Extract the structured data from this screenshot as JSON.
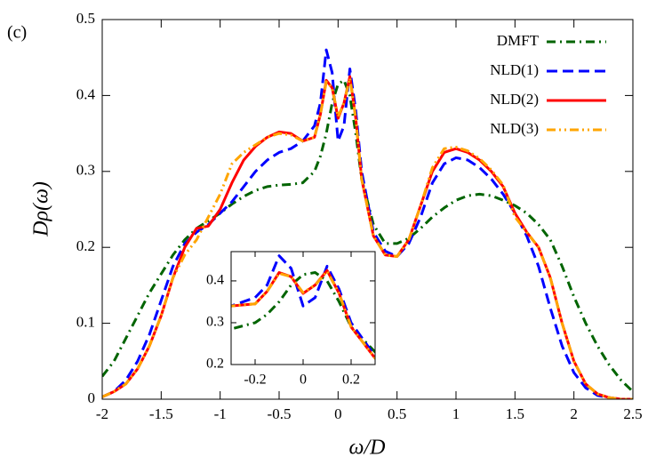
{
  "chart_data": {
    "type": "line",
    "annotation": "(c)",
    "x_label": "ω/D",
    "y_label": "Dρ(ω)",
    "xlim": [
      -2,
      2.5
    ],
    "ylim": [
      0,
      0.5
    ],
    "xticks": [
      -2,
      -1.5,
      -1,
      -0.5,
      0,
      0.5,
      1,
      1.5,
      2,
      2.5
    ],
    "yticks": [
      0,
      0.1,
      0.2,
      0.3,
      0.4,
      0.5
    ],
    "legend": "top-right",
    "x": [
      -2,
      -1.9,
      -1.8,
      -1.7,
      -1.6,
      -1.5,
      -1.4,
      -1.3,
      -1.2,
      -1.1,
      -1,
      -0.9,
      -0.8,
      -0.7,
      -0.6,
      -0.5,
      -0.4,
      -0.3,
      -0.2,
      -0.15,
      -0.1,
      -0.05,
      0,
      0.05,
      0.1,
      0.15,
      0.2,
      0.3,
      0.4,
      0.5,
      0.6,
      0.7,
      0.8,
      0.9,
      1,
      1.1,
      1.2,
      1.3,
      1.4,
      1.5,
      1.6,
      1.7,
      1.8,
      1.9,
      2,
      2.1,
      2.2,
      2.3,
      2.4,
      2.5
    ],
    "series": [
      {
        "name": "DMFT",
        "color": "#006400",
        "style": "dash-dot",
        "values": [
          0.03,
          0.05,
          0.08,
          0.11,
          0.14,
          0.165,
          0.19,
          0.21,
          0.225,
          0.235,
          0.245,
          0.257,
          0.267,
          0.275,
          0.28,
          0.282,
          0.283,
          0.285,
          0.3,
          0.32,
          0.35,
          0.39,
          0.415,
          0.42,
          0.4,
          0.35,
          0.29,
          0.23,
          0.205,
          0.205,
          0.212,
          0.225,
          0.24,
          0.252,
          0.262,
          0.268,
          0.27,
          0.268,
          0.262,
          0.255,
          0.245,
          0.23,
          0.21,
          0.175,
          0.135,
          0.1,
          0.07,
          0.045,
          0.025,
          0.01
        ]
      },
      {
        "name": "NLD(1)",
        "color": "#0000ff",
        "style": "dashed",
        "values": [
          0.003,
          0.01,
          0.025,
          0.05,
          0.085,
          0.13,
          0.175,
          0.205,
          0.22,
          0.23,
          0.245,
          0.26,
          0.28,
          0.3,
          0.315,
          0.325,
          0.33,
          0.34,
          0.36,
          0.39,
          0.46,
          0.43,
          0.34,
          0.36,
          0.435,
          0.38,
          0.3,
          0.22,
          0.195,
          0.188,
          0.205,
          0.24,
          0.285,
          0.31,
          0.318,
          0.315,
          0.305,
          0.29,
          0.27,
          0.245,
          0.215,
          0.175,
          0.12,
          0.07,
          0.035,
          0.015,
          0.005,
          0.002,
          0,
          0
        ]
      },
      {
        "name": "NLD(2)",
        "color": "#ff0000",
        "style": "solid",
        "values": [
          0.003,
          0.01,
          0.02,
          0.04,
          0.07,
          0.11,
          0.16,
          0.2,
          0.225,
          0.228,
          0.25,
          0.285,
          0.315,
          0.333,
          0.345,
          0.352,
          0.35,
          0.34,
          0.345,
          0.375,
          0.42,
          0.41,
          0.37,
          0.39,
          0.425,
          0.37,
          0.29,
          0.215,
          0.19,
          0.188,
          0.21,
          0.255,
          0.3,
          0.325,
          0.33,
          0.325,
          0.315,
          0.3,
          0.28,
          0.245,
          0.22,
          0.2,
          0.16,
          0.1,
          0.05,
          0.02,
          0.007,
          0.002,
          0,
          0
        ]
      },
      {
        "name": "NLD(3)",
        "color": "#ffa500",
        "style": "dash-dot-dot",
        "values": [
          0.003,
          0.01,
          0.02,
          0.04,
          0.07,
          0.11,
          0.16,
          0.19,
          0.21,
          0.24,
          0.27,
          0.31,
          0.325,
          0.335,
          0.345,
          0.35,
          0.348,
          0.34,
          0.345,
          0.375,
          0.418,
          0.41,
          0.372,
          0.39,
          0.423,
          0.37,
          0.29,
          0.215,
          0.19,
          0.188,
          0.21,
          0.255,
          0.305,
          0.33,
          0.332,
          0.327,
          0.317,
          0.302,
          0.282,
          0.24,
          0.22,
          0.2,
          0.16,
          0.1,
          0.05,
          0.02,
          0.007,
          0.002,
          0,
          0
        ]
      }
    ],
    "inset": {
      "xlim": [
        -0.3,
        0.3
      ],
      "ylim": [
        0.2,
        0.47
      ],
      "xticks": [
        -0.2,
        0,
        0.2
      ],
      "yticks": [
        0.2,
        0.3,
        0.4
      ]
    }
  }
}
